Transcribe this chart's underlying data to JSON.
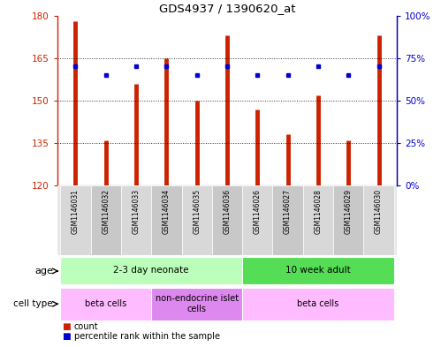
{
  "title": "GDS4937 / 1390620_at",
  "samples": [
    "GSM1146031",
    "GSM1146032",
    "GSM1146033",
    "GSM1146034",
    "GSM1146035",
    "GSM1146036",
    "GSM1146026",
    "GSM1146027",
    "GSM1146028",
    "GSM1146029",
    "GSM1146030"
  ],
  "counts": [
    178,
    136,
    156,
    165,
    150,
    173,
    147,
    138,
    152,
    136,
    173
  ],
  "percentile_ranks": [
    70,
    65,
    70,
    70,
    65,
    70,
    65,
    65,
    70,
    65,
    70
  ],
  "y_min": 120,
  "y_max": 180,
  "y_ticks": [
    120,
    135,
    150,
    165,
    180
  ],
  "right_y_ticks": [
    0,
    25,
    50,
    75,
    100
  ],
  "right_y_labels": [
    "0%",
    "25%",
    "50%",
    "75%",
    "100%"
  ],
  "bar_color": "#cc2200",
  "dot_color": "#0000cc",
  "age_groups": [
    {
      "label": "2-3 day neonate",
      "start": 0,
      "end": 6,
      "color": "#bbffbb"
    },
    {
      "label": "10 week adult",
      "start": 6,
      "end": 11,
      "color": "#55dd55"
    }
  ],
  "cell_type_groups": [
    {
      "label": "beta cells",
      "start": 0,
      "end": 3,
      "color": "#ffbbff"
    },
    {
      "label": "non-endocrine islet\ncells",
      "start": 3,
      "end": 6,
      "color": "#dd88ee"
    },
    {
      "label": "beta cells",
      "start": 6,
      "end": 11,
      "color": "#ffbbff"
    }
  ],
  "legend_count_color": "#cc2200",
  "legend_pct_color": "#0000cc",
  "tick_label_color_left": "#cc2200",
  "tick_label_color_right": "#0000cc",
  "gridline_ticks": [
    135,
    150,
    165
  ]
}
